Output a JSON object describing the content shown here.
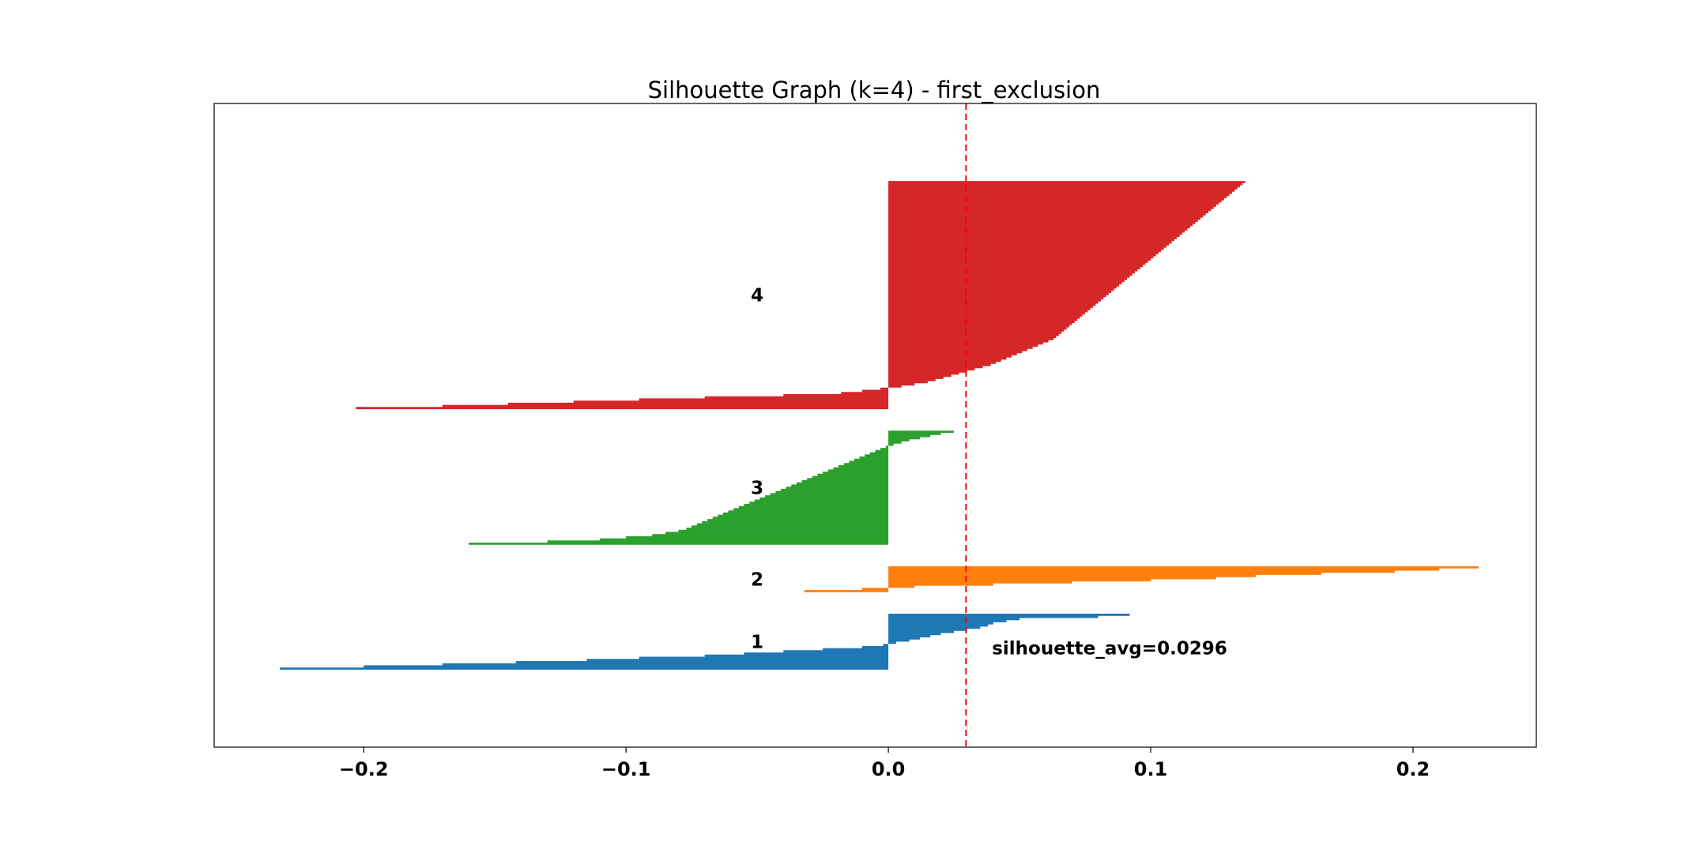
{
  "chart_data": {
    "type": "area",
    "title": "Silhouette Graph (k=4) - first_exclusion",
    "xlabel": "",
    "ylabel": "",
    "xlim": [
      -0.257,
      0.247
    ],
    "xticks": [
      -0.2,
      -0.1,
      0.0,
      0.1,
      0.2
    ],
    "xtick_labels": [
      "−0.2",
      "−0.1",
      "0.0",
      "0.1",
      "0.2"
    ],
    "grid": false,
    "silhouette_avg": 0.0296,
    "annotation": "silhouette_avg=0.0296",
    "clusters": [
      {
        "label": "1",
        "color": "#1f77b4",
        "size": 26,
        "values": [
          -0.232,
          -0.2,
          -0.17,
          -0.142,
          -0.115,
          -0.095,
          -0.07,
          -0.055,
          -0.04,
          -0.025,
          -0.01,
          -0.002,
          0.003,
          0.008,
          0.012,
          0.016,
          0.02,
          0.025,
          0.03,
          0.035,
          0.038,
          0.04,
          0.045,
          0.05,
          0.08,
          0.092
        ]
      },
      {
        "label": "2",
        "color": "#ff7f0e",
        "size": 12,
        "values": [
          -0.032,
          -0.01,
          0.01,
          0.04,
          0.07,
          0.1,
          0.125,
          0.14,
          0.165,
          0.193,
          0.21,
          0.225
        ]
      },
      {
        "label": "3",
        "color": "#2ca02c",
        "size": 53,
        "values": [
          -0.16,
          -0.13,
          -0.11,
          -0.1,
          -0.09,
          -0.085,
          -0.08,
          -0.077,
          -0.075,
          -0.073,
          -0.071,
          -0.069,
          -0.067,
          -0.065,
          -0.063,
          -0.061,
          -0.059,
          -0.057,
          -0.055,
          -0.053,
          -0.051,
          -0.049,
          -0.047,
          -0.045,
          -0.043,
          -0.041,
          -0.039,
          -0.037,
          -0.035,
          -0.033,
          -0.031,
          -0.029,
          -0.027,
          -0.025,
          -0.023,
          -0.021,
          -0.019,
          -0.017,
          -0.015,
          -0.013,
          -0.011,
          -0.009,
          -0.007,
          -0.005,
          -0.003,
          -0.001,
          0.002,
          0.005,
          0.008,
          0.012,
          0.016,
          0.02,
          0.025
        ]
      },
      {
        "label": "4",
        "color": "#d62728",
        "size": 106,
        "values": [
          -0.203,
          -0.17,
          -0.145,
          -0.12,
          -0.095,
          -0.07,
          -0.04,
          -0.018,
          -0.01,
          -0.003,
          0.005,
          0.01,
          0.015,
          0.018,
          0.021,
          0.024,
          0.027,
          0.03,
          0.033,
          0.036,
          0.039,
          0.041,
          0.043,
          0.045,
          0.047,
          0.049,
          0.051,
          0.053,
          0.055,
          0.057,
          0.059,
          0.061,
          0.063,
          0.064,
          0.065,
          0.066,
          0.067,
          0.068,
          0.069,
          0.07,
          0.071,
          0.072,
          0.073,
          0.074,
          0.075,
          0.076,
          0.077,
          0.078,
          0.079,
          0.08,
          0.081,
          0.082,
          0.083,
          0.084,
          0.085,
          0.086,
          0.087,
          0.088,
          0.089,
          0.09,
          0.091,
          0.092,
          0.093,
          0.094,
          0.095,
          0.096,
          0.097,
          0.098,
          0.099,
          0.1,
          0.101,
          0.102,
          0.103,
          0.104,
          0.105,
          0.106,
          0.107,
          0.108,
          0.109,
          0.11,
          0.111,
          0.112,
          0.113,
          0.114,
          0.115,
          0.116,
          0.117,
          0.118,
          0.119,
          0.12,
          0.121,
          0.122,
          0.123,
          0.124,
          0.125,
          0.126,
          0.127,
          0.128,
          0.129,
          0.13,
          0.131,
          0.132,
          0.133,
          0.134,
          0.135,
          0.136
        ]
      }
    ]
  }
}
